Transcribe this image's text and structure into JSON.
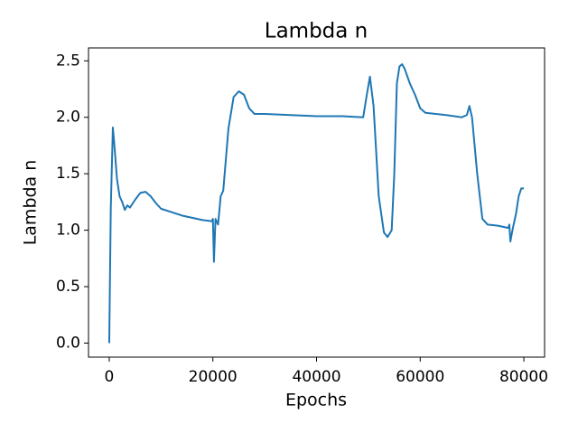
{
  "chart_data": {
    "type": "line",
    "title": "Lambda n",
    "x_label": "Epochs",
    "y_label": "Lambda n",
    "x": [
      0,
      300,
      700,
      1000,
      1500,
      2000,
      2500,
      3000,
      3500,
      4000,
      5000,
      6000,
      7000,
      8000,
      9000,
      10000,
      12000,
      14000,
      16000,
      18000,
      19800,
      20000,
      20200,
      20500,
      21000,
      21500,
      22000,
      23000,
      24000,
      25000,
      26000,
      27000,
      28000,
      30000,
      35000,
      40000,
      45000,
      49000,
      49700,
      50300,
      51000,
      52000,
      53000,
      53700,
      54500,
      55000,
      55500,
      56000,
      56500,
      57000,
      58000,
      59000,
      60000,
      61000,
      63000,
      65000,
      68000,
      69000,
      69500,
      70000,
      71000,
      72000,
      73000,
      75000,
      76000,
      77000,
      77200,
      77400,
      77800,
      78500,
      79000,
      79500,
      80000
    ],
    "series": [
      {
        "color": "#1f77b4",
        "values": [
          0,
          1.2,
          1.91,
          1.75,
          1.45,
          1.3,
          1.25,
          1.18,
          1.22,
          1.2,
          1.27,
          1.33,
          1.34,
          1.3,
          1.24,
          1.19,
          1.16,
          1.13,
          1.11,
          1.09,
          1.08,
          1.1,
          0.72,
          1.1,
          1.05,
          1.3,
          1.35,
          1.9,
          2.18,
          2.23,
          2.2,
          2.08,
          2.03,
          2.03,
          2.02,
          2.01,
          2.01,
          2.0,
          2.2,
          2.36,
          2.1,
          1.3,
          0.98,
          0.94,
          1.0,
          1.5,
          2.3,
          2.45,
          2.47,
          2.43,
          2.3,
          2.2,
          2.08,
          2.04,
          2.03,
          2.02,
          2.0,
          2.02,
          2.1,
          2.0,
          1.5,
          1.1,
          1.05,
          1.04,
          1.03,
          1.02,
          1.05,
          0.9,
          1.0,
          1.15,
          1.3,
          1.37,
          1.37
        ]
      }
    ],
    "xlim": [
      -4000,
      84000
    ],
    "xticks": [
      0,
      20000,
      40000,
      60000,
      80000
    ],
    "ylim": [
      -0.1245,
      2.6145
    ],
    "yticks": [
      {
        "value": 0,
        "label": "0.0"
      },
      0.5,
      {
        "value": 1,
        "label": "1.0"
      },
      1.5,
      {
        "value": 2,
        "label": "2.0"
      },
      2.5
    ],
    "grid": false
  }
}
